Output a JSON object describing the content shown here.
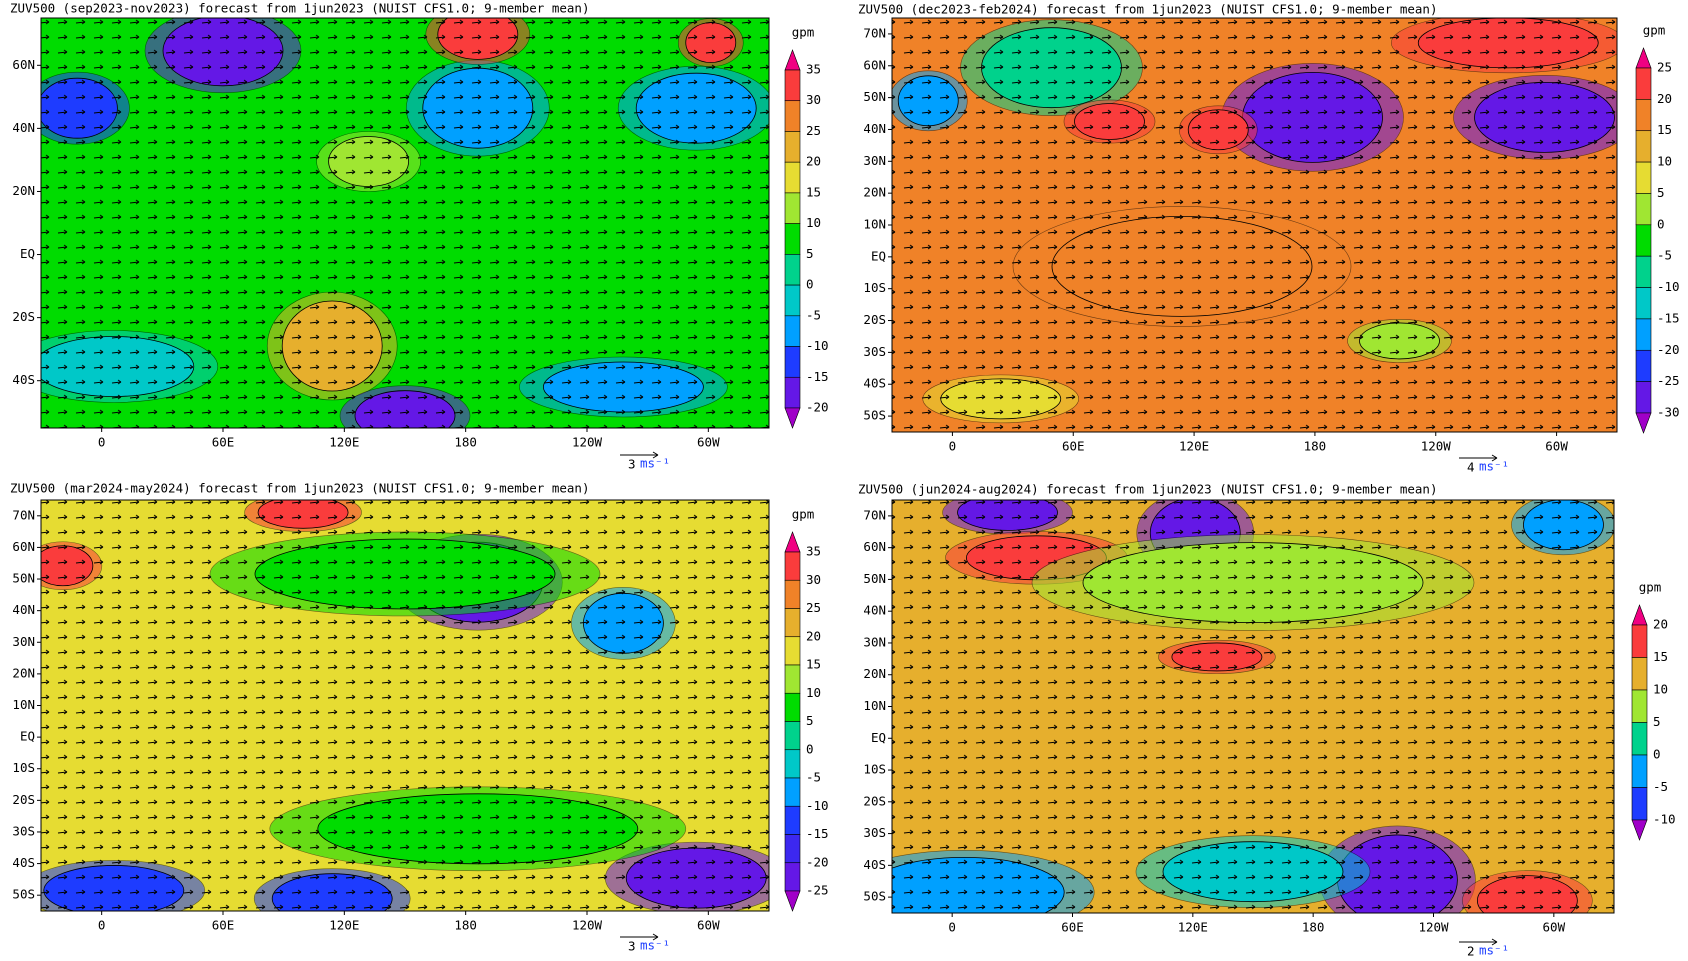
{
  "panels": [
    {
      "title": "ZUV500 (sep2023-nov2023) forecast from 1jun2023 (NUIST CFS1.0; 9-member mean)",
      "lat_labels": [
        "60N",
        "40N",
        "20N",
        "EQ",
        "20S",
        "40S"
      ],
      "lon_labels": [
        "0",
        "60E",
        "120E",
        "180",
        "120W",
        "60W"
      ],
      "colorbar": {
        "unit": "gpm",
        "labels": [
          35,
          30,
          25,
          20,
          15,
          10,
          5,
          0,
          -5,
          -10,
          -15,
          -20
        ],
        "colors": [
          "#f00082",
          "#fa3c3c",
          "#f08228",
          "#e6af2d",
          "#e6dc32",
          "#a0e632",
          "#00dc00",
          "#00d28c",
          "#00c8c8",
          "#00a0ff",
          "#1e3cff",
          "#6418e6",
          "#a000c8"
        ]
      },
      "vector_ref": {
        "value": "3",
        "unit": "ms⁻¹"
      }
    },
    {
      "title": "ZUV500 (dec2023-feb2024) forecast from 1jun2023 (NUIST CFS1.0; 9-member mean)",
      "lat_labels": [
        "70N",
        "60N",
        "50N",
        "40N",
        "30N",
        "20N",
        "10N",
        "EQ",
        "10S",
        "20S",
        "30S",
        "40S",
        "50S"
      ],
      "lon_labels": [
        "0",
        "60E",
        "120E",
        "180",
        "120W",
        "60W"
      ],
      "colorbar": {
        "unit": "gpm",
        "labels": [
          25,
          20,
          15,
          10,
          5,
          0,
          -5,
          -10,
          -15,
          -20,
          -25,
          -30
        ],
        "colors": [
          "#f00082",
          "#fa3c3c",
          "#f08228",
          "#e6af2d",
          "#e6dc32",
          "#a0e632",
          "#00dc00",
          "#00d28c",
          "#00c8c8",
          "#00a0ff",
          "#1e3cff",
          "#6418e6",
          "#a000c8"
        ]
      },
      "vector_ref": {
        "value": "4",
        "unit": "ms⁻¹"
      }
    },
    {
      "title": "ZUV500 (mar2024-may2024) forecast from 1jun2023 (NUIST CFS1.0; 9-member mean)",
      "lat_labels": [
        "70N",
        "60N",
        "50N",
        "40N",
        "30N",
        "20N",
        "10N",
        "EQ",
        "10S",
        "20S",
        "30S",
        "40S",
        "50S"
      ],
      "lon_labels": [
        "0",
        "60E",
        "120E",
        "180",
        "120W",
        "60W"
      ],
      "colorbar": {
        "unit": "gpm",
        "labels": [
          35,
          30,
          25,
          20,
          15,
          10,
          5,
          0,
          -5,
          -10,
          -15,
          -20,
          -25
        ],
        "colors": [
          "#f00082",
          "#fa3c3c",
          "#f08228",
          "#e6af2d",
          "#e6dc32",
          "#a0e632",
          "#00dc00",
          "#00d28c",
          "#00c8c8",
          "#00a0ff",
          "#1e3cff",
          "#3c28f0",
          "#6418e6",
          "#a000c8"
        ]
      },
      "vector_ref": {
        "value": "3",
        "unit": "ms⁻¹"
      }
    },
    {
      "title": "ZUV500 (jun2024-aug2024) forecast from 1jun2023 (NUIST CFS1.0; 9-member mean)",
      "lat_labels": [
        "70N",
        "60N",
        "50N",
        "40N",
        "30N",
        "20N",
        "10N",
        "EQ",
        "10S",
        "20S",
        "30S",
        "40S",
        "50S"
      ],
      "lon_labels": [
        "0",
        "60E",
        "120E",
        "180",
        "120W",
        "60W"
      ],
      "colorbar": {
        "unit": "gpm",
        "labels": [
          20,
          15,
          10,
          5,
          0,
          -5,
          -10
        ],
        "colors": [
          "#f00082",
          "#fa3c3c",
          "#e6af2d",
          "#a0e632",
          "#00d28c",
          "#00a0ff",
          "#1e3cff",
          "#a000c8"
        ]
      },
      "vector_ref": {
        "value": "2",
        "unit": "ms⁻¹"
      }
    }
  ]
}
